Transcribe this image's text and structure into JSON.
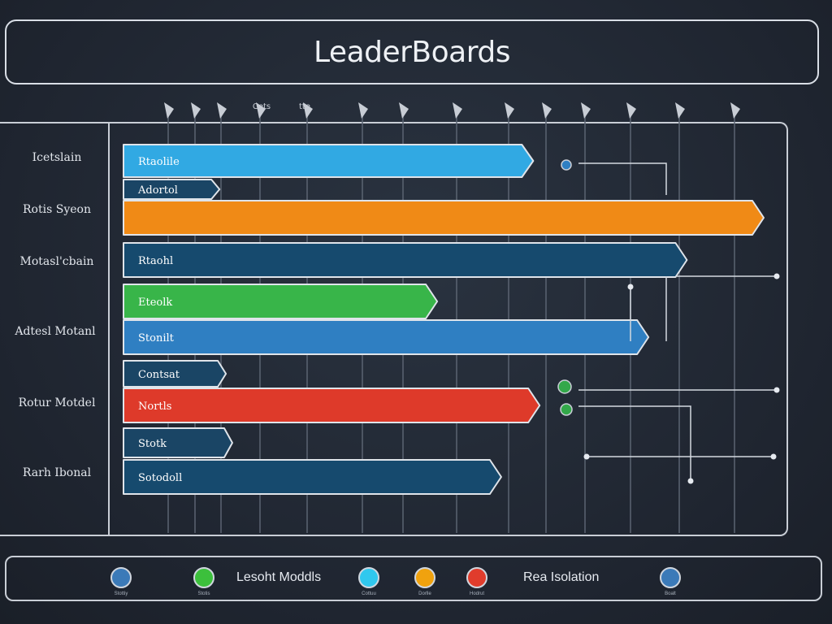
{
  "header": {
    "title": "LeaderBoards"
  },
  "row_labels": [
    "Icetslain",
    "Rotis Syeon",
    "Motasl'cbain",
    "Adtesl Motanl",
    "Rotur Motdel",
    "Rarh Ibonal"
  ],
  "top_markers": [
    "Cets",
    "tte"
  ],
  "colors": {
    "light_blue": "#31a9e3",
    "orange": "#f08a16",
    "navy": "#164a6e",
    "green": "#38b549",
    "blue": "#2f7fc2",
    "red": "#de3a2a",
    "tag": "#1a4565"
  },
  "chart_data": {
    "type": "bar",
    "title": "LeaderBoards",
    "orientation": "horizontal",
    "xlim": [
      0,
      100
    ],
    "grid": true,
    "bars": [
      {
        "label": "Rtaolile",
        "value": 64,
        "color": "light_blue",
        "kind": "bar"
      },
      {
        "label": "Adortol",
        "value": 15,
        "color": "tag",
        "kind": "tag"
      },
      {
        "label": "",
        "value": 100,
        "color": "orange",
        "kind": "bar"
      },
      {
        "label": "Rtaohl",
        "value": 88,
        "color": "navy",
        "kind": "bar"
      },
      {
        "label": "Eteolk",
        "value": 49,
        "color": "green",
        "kind": "bar"
      },
      {
        "label": "Stonilt",
        "value": 82,
        "color": "blue",
        "kind": "bar"
      },
      {
        "label": "Contsat",
        "value": 16,
        "color": "tag",
        "kind": "tag"
      },
      {
        "label": "Nortls",
        "value": 65,
        "color": "red",
        "kind": "bar"
      },
      {
        "label": "Stotk",
        "value": 17,
        "color": "tag",
        "kind": "tag"
      },
      {
        "label": "Sotodoll",
        "value": 59,
        "color": "navy",
        "kind": "bar"
      }
    ]
  },
  "legend": {
    "items": [
      {
        "color": "#3b7ab8",
        "caption": "Stottiy"
      },
      {
        "color": "#3cc03c",
        "caption": "Stotis"
      },
      {
        "color": "#30c8ee",
        "caption": "Cottuu"
      },
      {
        "color": "#f0a20e",
        "caption": "Dorlle"
      },
      {
        "color": "#e03c2c",
        "caption": "Hodrut"
      },
      {
        "color": "#3b7ab8",
        "caption": "Boalt"
      }
    ],
    "text_left": "Lesoht Moddls",
    "text_right": "Rea Isolation"
  }
}
